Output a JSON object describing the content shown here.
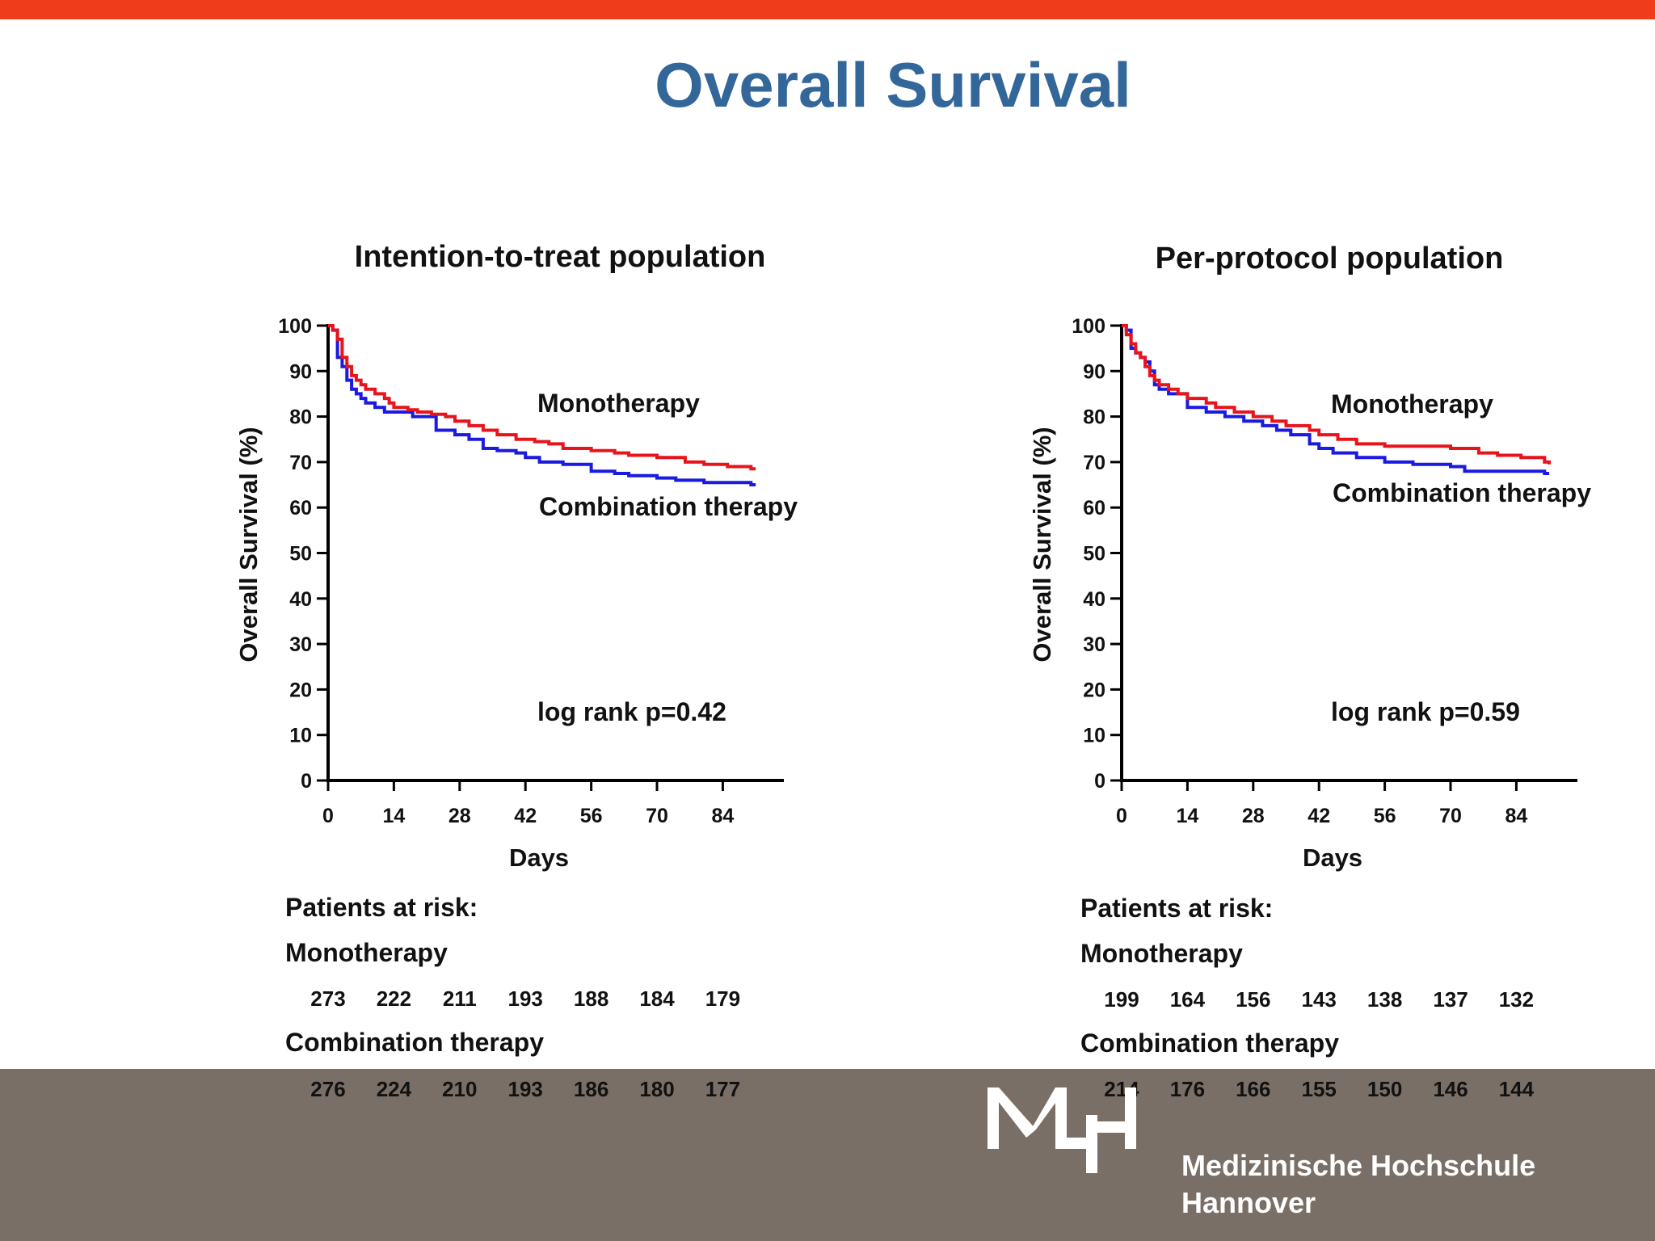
{
  "slide": {
    "title": "Overall Survival",
    "accent_color": "#ef3c1a",
    "title_color": "#336699",
    "footer_color": "#7a6f66"
  },
  "logo": {
    "mark": "MHH",
    "line1": "Medizinische Hochschule",
    "line2": "Hannover"
  },
  "chart_data": [
    {
      "type": "line",
      "title": "Intention-to-treat population",
      "xlabel": "Days",
      "ylabel": "Overall Survival (%)",
      "xlim": [
        0,
        97
      ],
      "ylim": [
        0,
        100
      ],
      "xticks": [
        0,
        14,
        28,
        42,
        56,
        70,
        84
      ],
      "yticks": [
        0,
        10,
        20,
        30,
        40,
        50,
        60,
        70,
        80,
        90,
        100
      ],
      "grid": false,
      "annotation": "log rank p=0.42",
      "series": [
        {
          "name": "Monotherapy",
          "color": "#e8141c",
          "x": [
            0,
            1,
            2,
            3,
            4,
            5,
            6,
            7,
            8,
            10,
            12,
            13,
            14,
            17,
            19,
            22,
            25,
            27,
            30,
            33,
            36,
            40,
            44,
            47,
            50,
            56,
            61,
            64,
            70,
            76,
            80,
            85,
            90,
            91
          ],
          "y": [
            100,
            99,
            97,
            93,
            91,
            89,
            88,
            87,
            86,
            85,
            84,
            83,
            82,
            81.5,
            81,
            80.5,
            80,
            79,
            78,
            77,
            76,
            75,
            74.5,
            74,
            73,
            72.5,
            72,
            71.5,
            71,
            70,
            69.5,
            69,
            68.5,
            68.5
          ]
        },
        {
          "name": "Combination therapy",
          "color": "#1a1ae0",
          "x": [
            0,
            1,
            2,
            3,
            4,
            5,
            6,
            7,
            8,
            10,
            12,
            14,
            18,
            23,
            27,
            30,
            33,
            36,
            40,
            42,
            45,
            50,
            56,
            61,
            64,
            70,
            74,
            80,
            85,
            90,
            91
          ],
          "y": [
            100,
            99,
            93,
            91,
            88,
            86,
            85,
            84,
            83,
            82,
            81,
            81,
            80,
            77,
            76,
            75,
            73,
            72.5,
            72,
            71,
            70,
            69.5,
            68,
            67.5,
            67,
            66.5,
            66,
            65.5,
            65.5,
            65,
            65
          ]
        }
      ],
      "at_risk": {
        "heading": "Patients at risk:",
        "rows": [
          {
            "label": "Monotherapy",
            "values": [
              273,
              222,
              211,
              193,
              188,
              184,
              179
            ]
          },
          {
            "label": "Combination therapy",
            "values": [
              276,
              224,
              210,
              193,
              186,
              180,
              177
            ]
          }
        ]
      }
    },
    {
      "type": "line",
      "title": "Per-protocol population",
      "xlabel": "Days",
      "ylabel": "Overall Survival (%)",
      "xlim": [
        0,
        97
      ],
      "ylim": [
        0,
        100
      ],
      "xticks": [
        0,
        14,
        28,
        42,
        56,
        70,
        84
      ],
      "yticks": [
        0,
        10,
        20,
        30,
        40,
        50,
        60,
        70,
        80,
        90,
        100
      ],
      "grid": false,
      "annotation": "log rank p=0.59",
      "series": [
        {
          "name": "Monotherapy",
          "color": "#e8141c",
          "x": [
            0,
            1,
            2,
            3,
            4,
            5,
            6,
            7,
            8,
            10,
            12,
            14,
            18,
            20,
            24,
            28,
            32,
            35,
            40,
            42,
            46,
            50,
            56,
            62,
            70,
            76,
            80,
            85,
            90,
            91
          ],
          "y": [
            100,
            98,
            96,
            94,
            93,
            91,
            89,
            88,
            87,
            86,
            85,
            84,
            83,
            82,
            81,
            80,
            79,
            78,
            77,
            76,
            75,
            74,
            73.5,
            73.5,
            73,
            72,
            71.5,
            71,
            70,
            69.5
          ]
        },
        {
          "name": "Combination therapy",
          "color": "#1a1ae0",
          "x": [
            0,
            1,
            2,
            3,
            4,
            5,
            6,
            7,
            8,
            10,
            14,
            18,
            22,
            26,
            30,
            33,
            36,
            40,
            42,
            45,
            50,
            56,
            62,
            66,
            70,
            73,
            80,
            85,
            90,
            91
          ],
          "y": [
            100,
            99,
            95,
            94,
            93,
            92,
            90,
            87,
            86,
            85,
            82,
            81,
            80,
            79,
            78,
            77,
            76,
            74,
            73,
            72,
            71,
            70,
            69.5,
            69.5,
            69,
            68,
            68,
            68,
            67.5,
            67.5
          ]
        }
      ],
      "at_risk": {
        "heading": "Patients at risk:",
        "rows": [
          {
            "label": "Monotherapy",
            "values": [
              199,
              164,
              156,
              143,
              138,
              137,
              132
            ]
          },
          {
            "label": "Combination therapy",
            "values": [
              214,
              176,
              166,
              155,
              150,
              146,
              144
            ]
          }
        ]
      }
    }
  ]
}
